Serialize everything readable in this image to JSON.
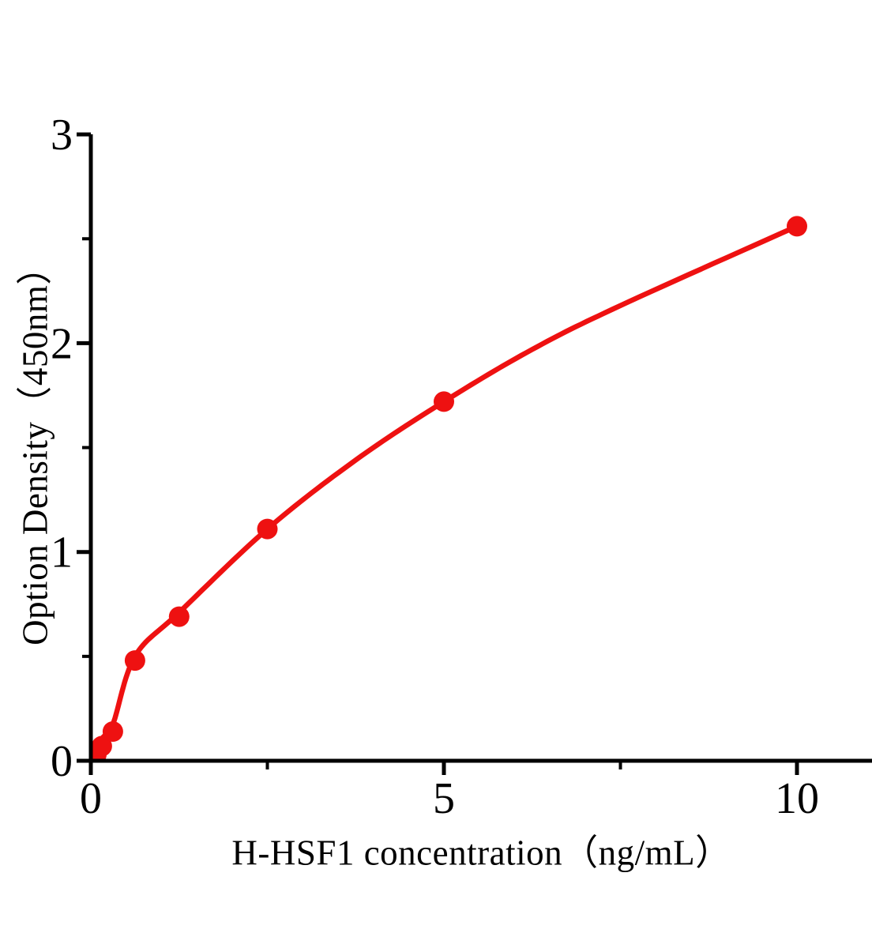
{
  "chart_data": {
    "type": "scatter",
    "title": "",
    "xlabel": "H-HSF1 concentration（ng/mL）",
    "ylabel": "Option Density（450nm）",
    "x": [
      0.078,
      0.156,
      0.3125,
      0.625,
      1.25,
      2.5,
      5,
      10
    ],
    "y": [
      0.03,
      0.07,
      0.14,
      0.48,
      0.69,
      1.11,
      1.72,
      2.56
    ],
    "fit_curve": {
      "type": "smooth",
      "points": [
        [
          0,
          0
        ],
        [
          0.156,
          0.105
        ],
        [
          0.3125,
          0.175
        ],
        [
          0.625,
          0.5
        ],
        [
          1.25,
          0.71
        ],
        [
          2.5,
          1.11
        ],
        [
          3.75,
          1.44
        ],
        [
          5,
          1.72
        ],
        [
          6.25,
          1.97
        ],
        [
          7.5,
          2.18
        ],
        [
          10,
          2.56
        ]
      ]
    },
    "xlim": [
      0,
      11.06
    ],
    "ylim": [
      0,
      3
    ],
    "x_major_ticks": [
      0,
      5,
      10
    ],
    "x_minor_ticks": [
      2.5,
      7.5
    ],
    "y_major_ticks": [
      0,
      1,
      2,
      3
    ],
    "y_minor_ticks": [
      0.5,
      1.5,
      2.5
    ],
    "grid": false,
    "legend": null,
    "colors": {
      "curve": "#ee1111",
      "marker": "#ee1111",
      "axis": "#000000",
      "tick_label": "#000000",
      "background": "#ffffff"
    }
  }
}
